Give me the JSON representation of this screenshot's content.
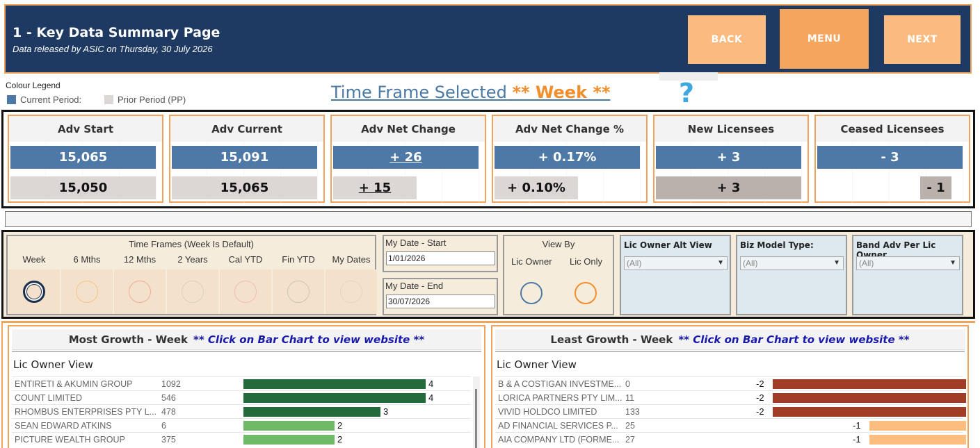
{
  "header": {
    "title": "1 - Key Data Summary Page",
    "subtitle": "Data released by ASIC on Thursday, 30 July 2026",
    "back_label": "BACK",
    "menu_label": "MENU",
    "next_label": "NEXT",
    "bg_color": "#1f3a62",
    "button_color": "#fbbb80"
  },
  "legend": {
    "title": "Colour Legend",
    "current_label": "Current Period:",
    "prior_label": "Prior Period (PP)",
    "current_color": "#4e79a7",
    "prior_color": "#dcd6d4"
  },
  "time_frame": {
    "label": "Time Frame Selected",
    "value": "** Week **",
    "help": "?"
  },
  "kpis": [
    {
      "title": "Adv Start",
      "current": "15,065",
      "prior": "15,050"
    },
    {
      "title": "Adv Current",
      "current": "15,091",
      "prior": "15,065"
    },
    {
      "title": "Adv Net Change",
      "current": "+ 26",
      "prior": "+ 15"
    },
    {
      "title": "Adv Net Change %",
      "current": "+ 0.17%",
      "prior": "+ 0.10%"
    },
    {
      "title": "New Licensees",
      "current": "+ 3",
      "prior": "+ 3"
    },
    {
      "title": "Ceased Licensees",
      "current": "- 3",
      "prior": "- 1"
    }
  ],
  "filters": {
    "time_frames_title": "Time Frames (Week Is Default)",
    "time_frames": [
      "Week",
      "6 Mths",
      "12 Mths",
      "2 Years",
      "Cal YTD",
      "Fin YTD",
      "My Dates"
    ],
    "selected_time_frame": "Week",
    "my_date_start_label": "My Date - Start",
    "my_date_start": "1/01/2026",
    "my_date_end_label": "My Date - End",
    "my_date_end": "30/07/2026",
    "view_by_title": "View By",
    "view_by_options": [
      "Lic Owner",
      "Lic Only"
    ],
    "dropdowns": [
      {
        "label": "Lic Owner Alt View",
        "value": "(All)"
      },
      {
        "label": "Biz Model Type:",
        "value": "(All)"
      },
      {
        "label": "Band Adv Per Lic Owner",
        "value": "(All)"
      }
    ]
  },
  "most_growth": {
    "title": "Most Growth - Week",
    "note": "** Click on Bar Chart to view website **",
    "view": "Lic Owner View",
    "rows": [
      {
        "name": "ENTIRETI & AKUMIN GROUP",
        "advisers": "1092",
        "change": 4
      },
      {
        "name": "COUNT LIMITED",
        "advisers": "546",
        "change": 4
      },
      {
        "name": "RHOMBUS ENTERPRISES PTY L...",
        "advisers": "478",
        "change": 3
      },
      {
        "name": "SEAN EDWARD  ATKINS",
        "advisers": "6",
        "change": 2
      },
      {
        "name": "PICTURE WEALTH GROUP",
        "advisers": "375",
        "change": 2
      }
    ]
  },
  "least_growth": {
    "title": "Least Growth - Week",
    "note": "** Click on Bar Chart to view website **",
    "view": "Lic Owner View",
    "rows": [
      {
        "name": "B & A COSTIGAN INVESTME...",
        "advisers": "0",
        "change": -2
      },
      {
        "name": "LORICA PARTNERS PTY LIM...",
        "advisers": "11",
        "change": -2
      },
      {
        "name": "VIVID HOLDCO LIMITED",
        "advisers": "133",
        "change": -2
      },
      {
        "name": "AD FINANCIAL SERVICES P...",
        "advisers": "25",
        "change": -1
      },
      {
        "name": "AIA COMPANY LTD (FORME...",
        "advisers": "27",
        "change": -1
      }
    ]
  }
}
